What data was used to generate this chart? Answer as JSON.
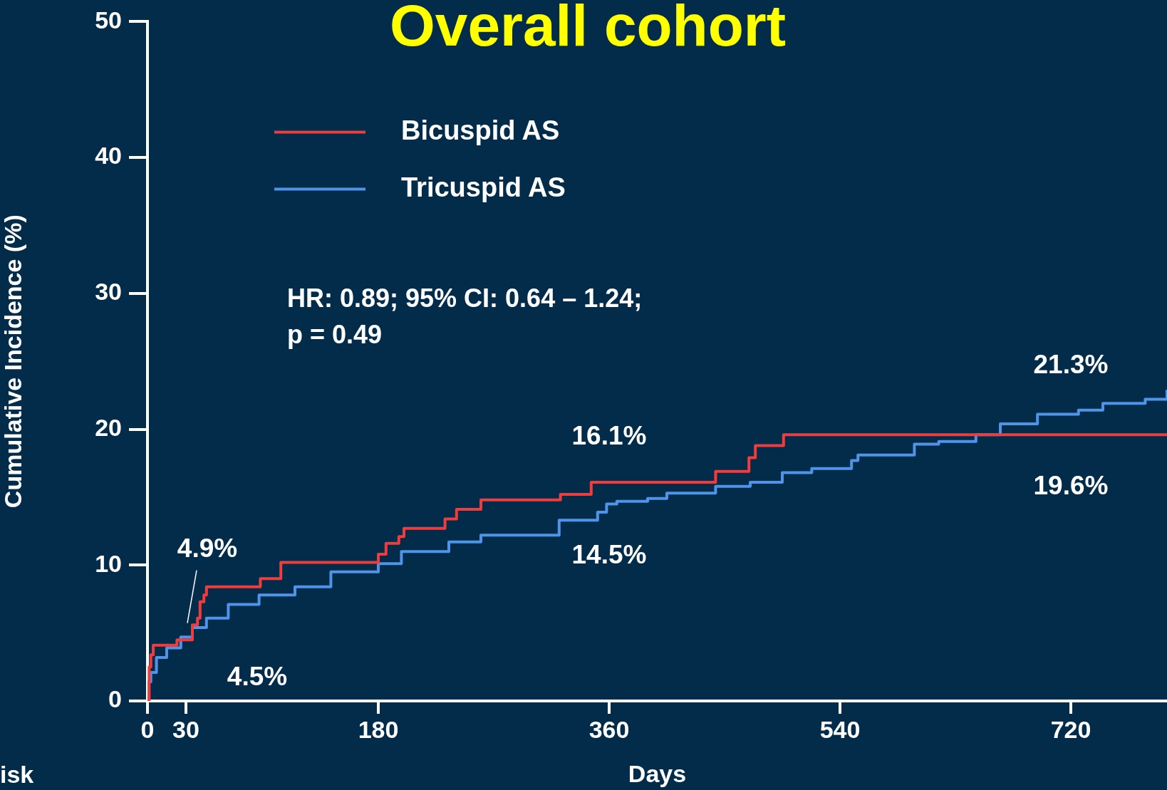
{
  "chart_data": {
    "type": "step",
    "title": "Overall cohort",
    "xlabel": "Days",
    "ylabel": "Cumulative Incidence (%)",
    "xlim": [
      0,
      795
    ],
    "xticks": [
      0,
      30,
      180,
      360,
      540,
      720
    ],
    "ylim": [
      0,
      50
    ],
    "yticks": [
      0,
      10,
      20,
      30,
      40,
      50
    ],
    "grid": false,
    "legend": "top left",
    "series": [
      {
        "name": "Bicuspid AS",
        "color": "#f03c3c",
        "x": [
          0,
          1.3,
          2.6,
          4.5,
          23,
          35,
          39,
          41,
          44,
          46,
          88,
          104,
          180,
          186,
          196,
          200,
          232,
          241,
          260,
          322,
          346,
          443,
          469,
          474,
          496,
          795
        ],
        "values": [
          0,
          2.5,
          3.4,
          4.1,
          4.5,
          5.6,
          6.1,
          7.3,
          7.8,
          8.4,
          9.0,
          10.2,
          10.8,
          11.6,
          12.1,
          12.7,
          13.4,
          14.1,
          14.8,
          15.2,
          16.1,
          16.9,
          17.9,
          18.8,
          19.6,
          19.6
        ]
      },
      {
        "name": "Tricuspid AS",
        "color": "#4f94e8",
        "x": [
          0,
          0.2,
          2.6,
          7,
          15,
          26,
          35,
          46,
          63,
          87,
          115,
          143,
          180,
          198,
          235,
          260,
          321,
          351,
          358,
          366,
          390,
          405,
          443,
          470,
          495,
          512,
          518,
          549,
          554,
          598,
          617,
          646,
          665,
          694,
          726,
          745,
          778,
          795
        ],
        "values": [
          0,
          1.4,
          2.1,
          3.2,
          3.9,
          4.7,
          5.4,
          6.1,
          7.1,
          7.8,
          8.4,
          9.5,
          10.1,
          11.0,
          11.7,
          12.2,
          13.3,
          13.9,
          14.5,
          14.7,
          14.9,
          15.3,
          15.8,
          16.1,
          16.8,
          16.8,
          17.1,
          17.7,
          18.1,
          18.9,
          19.1,
          19.6,
          20.4,
          21.1,
          21.4,
          21.9,
          22.2,
          22.9
        ]
      }
    ],
    "annotations": [
      "HR: 0.89; 95% CI: 0.64 – 1.24;\np = 0.49",
      {
        "text": "4.9%",
        "x": 30,
        "y": 4.9
      },
      {
        "text": "4.5%",
        "x": 30,
        "y": 4.5
      },
      {
        "text": "16.1%",
        "x": 360,
        "y": 16.1
      },
      {
        "text": "14.5%",
        "x": 360,
        "y": 14.5
      },
      {
        "text": "21.3%",
        "x": 720,
        "y": 21.3
      },
      {
        "text": "19.6%",
        "x": 720,
        "y": 19.6
      },
      "isk"
    ]
  }
}
